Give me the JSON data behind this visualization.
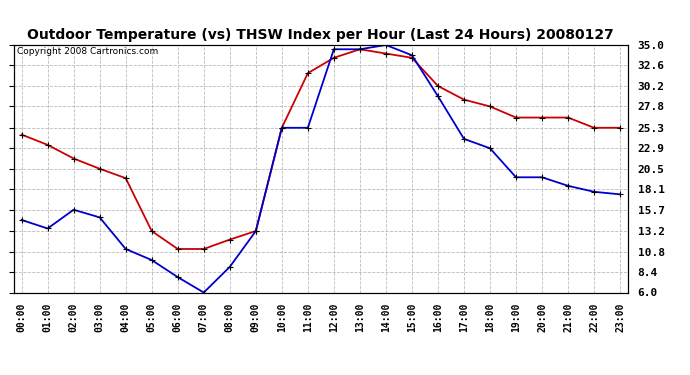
{
  "title": "Outdoor Temperature (vs) THSW Index per Hour (Last 24 Hours) 20080127",
  "copyright": "Copyright 2008 Cartronics.com",
  "hours": [
    0,
    1,
    2,
    3,
    4,
    5,
    6,
    7,
    8,
    9,
    10,
    11,
    12,
    13,
    14,
    15,
    16,
    17,
    18,
    19,
    20,
    21,
    22,
    23
  ],
  "temp_red": [
    24.5,
    23.3,
    21.7,
    20.5,
    19.4,
    13.2,
    11.1,
    11.1,
    12.2,
    13.2,
    25.3,
    31.7,
    33.5,
    34.5,
    34.0,
    33.5,
    30.2,
    28.6,
    27.8,
    26.5,
    26.5,
    26.5,
    25.3,
    25.3
  ],
  "thsw_blue": [
    14.5,
    13.5,
    15.7,
    14.8,
    11.1,
    9.8,
    7.8,
    6.0,
    9.0,
    13.2,
    25.3,
    25.3,
    34.5,
    34.5,
    35.0,
    33.8,
    29.0,
    24.0,
    22.9,
    19.5,
    19.5,
    18.5,
    17.8,
    17.5
  ],
  "yticks": [
    6.0,
    8.4,
    10.8,
    13.2,
    15.7,
    18.1,
    20.5,
    22.9,
    25.3,
    27.8,
    30.2,
    32.6,
    35.0
  ],
  "ymin": 6.0,
  "ymax": 35.0,
  "fig_bg": "#ffffff",
  "plot_bg": "#ffffff",
  "red_color": "#cc0000",
  "blue_color": "#0000cc",
  "grid_color": "#bbbbbb",
  "title_fontsize": 10,
  "copyright_fontsize": 6.5,
  "tick_fontsize": 7,
  "marker_size": 5
}
